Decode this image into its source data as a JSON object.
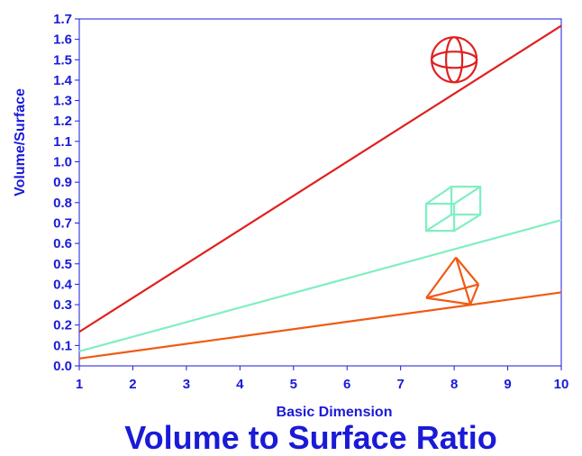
{
  "chart_data": {
    "type": "line",
    "title": "Volume to Surface Ratio",
    "xlabel": "Basic Dimension",
    "ylabel": "Volume/Surface",
    "xlim": [
      1,
      10
    ],
    "ylim": [
      0,
      1.7
    ],
    "xticks": [
      "1",
      "2",
      "3",
      "4",
      "5",
      "6",
      "7",
      "8",
      "9",
      "10"
    ],
    "yticks": [
      "0.0",
      "0.1",
      "0.2",
      "0.3",
      "0.4",
      "0.5",
      "0.6",
      "0.7",
      "0.8",
      "0.9",
      "1.0",
      "1.1",
      "1.2",
      "1.3",
      "1.4",
      "1.5",
      "1.6",
      "1.7"
    ],
    "grid": false,
    "legend": "none",
    "series": [
      {
        "shape": "sphere",
        "color": "#e02020",
        "x": [
          1,
          10
        ],
        "y": [
          0.1667,
          1.6667
        ]
      },
      {
        "shape": "cube",
        "color": "#7fefc0",
        "x": [
          1,
          10
        ],
        "y": [
          0.0714,
          0.7143
        ]
      },
      {
        "shape": "tetrahedron",
        "color": "#f05a14",
        "x": [
          1,
          10
        ],
        "y": [
          0.036,
          0.36
        ]
      }
    ],
    "icons": [
      {
        "name": "sphere-icon",
        "x": 8,
        "y": 1.5,
        "color": "#e02020"
      },
      {
        "name": "cube-icon",
        "x": 8,
        "y": 0.75,
        "color": "#7fefc0"
      },
      {
        "name": "tetrahedron-icon",
        "x": 8,
        "y": 0.43,
        "color": "#f05a14"
      }
    ],
    "axis_color": "#1a1ad8"
  }
}
